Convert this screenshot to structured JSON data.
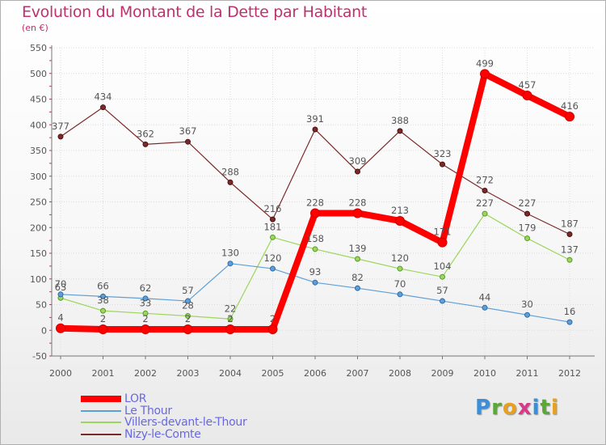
{
  "chart_data": {
    "type": "line",
    "title": "Evolution du Montant de la Dette par Habitant",
    "subtitle": "(en €)",
    "x": [
      "2000",
      "2001",
      "2002",
      "2003",
      "2004",
      "2005",
      "2006",
      "2007",
      "2008",
      "2009",
      "2010",
      "2011",
      "2012"
    ],
    "ylim": [
      -50,
      550
    ],
    "yticks": [
      -50,
      0,
      50,
      100,
      150,
      200,
      250,
      300,
      350,
      400,
      450,
      500,
      550
    ],
    "grid": true,
    "legend_position": "bottom-left",
    "series": [
      {
        "name": "LOR",
        "color": "#ff0000",
        "values": [
          4,
          2,
          2,
          2,
          2,
          2,
          228,
          228,
          213,
          171,
          499,
          457,
          416
        ]
      },
      {
        "name": "Le Thour",
        "color": "#5f9fd8",
        "values": [
          70,
          66,
          62,
          57,
          130,
          120,
          93,
          82,
          70,
          57,
          44,
          30,
          16
        ]
      },
      {
        "name": "Villers-devant-le-Thour",
        "color": "#9cd65c",
        "values": [
          63,
          38,
          33,
          28,
          22,
          181,
          158,
          139,
          120,
          104,
          227,
          179,
          137
        ]
      },
      {
        "name": "Nizy-le-Comte",
        "color": "#7b2a2a",
        "values": [
          377,
          434,
          362,
          367,
          288,
          216,
          391,
          309,
          388,
          323,
          272,
          227,
          187
        ]
      }
    ]
  },
  "logo": {
    "letters": [
      "P",
      "r",
      "o",
      "x",
      "i",
      "t",
      "i"
    ],
    "colors": [
      "#3a8fd8",
      "#5aa83a",
      "#e8a020",
      "#d83a8a",
      "#3a8fd8",
      "#5aa83a",
      "#e8a020"
    ]
  }
}
